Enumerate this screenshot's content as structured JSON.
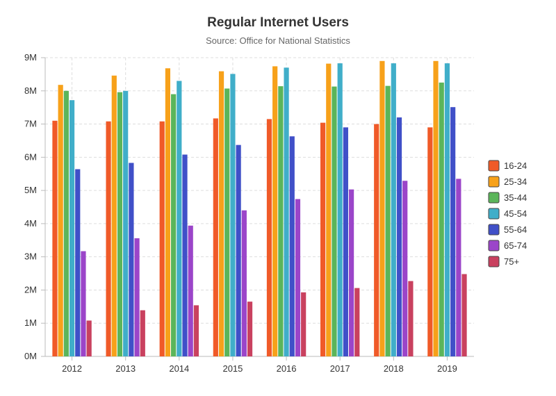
{
  "title": "Regular Internet Users",
  "subtitle": "Source: Office for National Statistics",
  "chart_data": {
    "type": "bar",
    "title": "Regular Internet Users",
    "subtitle": "Source: Office for National Statistics",
    "categories": [
      "2012",
      "2013",
      "2014",
      "2015",
      "2016",
      "2017",
      "2018",
      "2019"
    ],
    "ylim": [
      0,
      9000000
    ],
    "yticks": [
      {
        "value": 0,
        "label": "0M"
      },
      {
        "value": 1000000,
        "label": "1M"
      },
      {
        "value": 2000000,
        "label": "2M"
      },
      {
        "value": 3000000,
        "label": "3M"
      },
      {
        "value": 4000000,
        "label": "4M"
      },
      {
        "value": 5000000,
        "label": "5M"
      },
      {
        "value": 6000000,
        "label": "6M"
      },
      {
        "value": 7000000,
        "label": "7M"
      },
      {
        "value": 8000000,
        "label": "8M"
      },
      {
        "value": 9000000,
        "label": "9M"
      }
    ],
    "grid": true,
    "legend_position": "right",
    "series": [
      {
        "name": "16-24",
        "color": "#f05a28",
        "values": [
          7100000,
          7080000,
          7080000,
          7170000,
          7150000,
          7040000,
          7000000,
          6900000
        ]
      },
      {
        "name": "25-34",
        "color": "#f7a11a",
        "values": [
          8180000,
          8460000,
          8680000,
          8590000,
          8740000,
          8820000,
          8900000,
          8900000
        ]
      },
      {
        "name": "35-44",
        "color": "#5bb55a",
        "values": [
          8000000,
          7960000,
          7900000,
          8070000,
          8140000,
          8130000,
          8150000,
          8250000
        ]
      },
      {
        "name": "45-54",
        "color": "#40aec9",
        "values": [
          7720000,
          8000000,
          8300000,
          8510000,
          8700000,
          8830000,
          8830000,
          8830000
        ]
      },
      {
        "name": "55-64",
        "color": "#4050c8",
        "values": [
          5640000,
          5830000,
          6080000,
          6370000,
          6630000,
          6900000,
          7200000,
          7510000
        ]
      },
      {
        "name": "65-74",
        "color": "#9b45c9",
        "values": [
          3170000,
          3560000,
          3940000,
          4400000,
          4740000,
          5030000,
          5290000,
          5350000
        ]
      },
      {
        "name": "75+",
        "color": "#c9415f",
        "values": [
          1080000,
          1390000,
          1540000,
          1650000,
          1930000,
          2060000,
          2270000,
          2480000
        ]
      }
    ]
  }
}
